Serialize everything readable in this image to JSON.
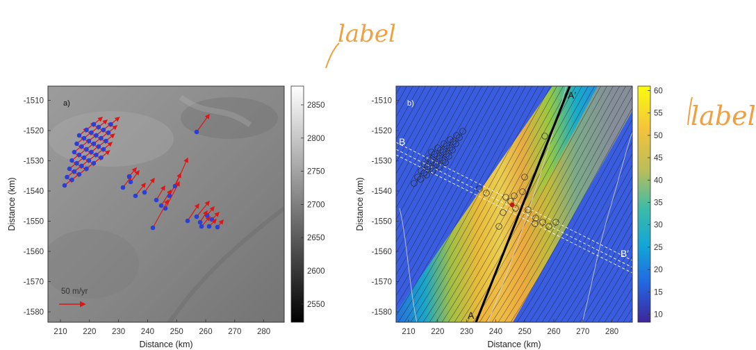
{
  "annotations": {
    "handwritten_top": "label",
    "handwritten_right": "label",
    "ink_color": "#f0a040"
  },
  "panel_a": {
    "tag": "a)",
    "xlabel": "Distance (km)",
    "ylabel": "Distance (km)",
    "x_ticks": [
      "210",
      "220",
      "230",
      "240",
      "250",
      "260",
      "270",
      "280"
    ],
    "y_ticks": [
      "-1510",
      "-1520",
      "-1530",
      "-1540",
      "-1550",
      "-1560",
      "-1570",
      "-1580"
    ],
    "colorbar_ticks": [
      "2850",
      "2800",
      "2750",
      "2700",
      "2650",
      "2600",
      "2550"
    ],
    "scale_label": "50 m/yr",
    "vector_color": "#e01515",
    "station_color": "#2a3fd6"
  },
  "panel_b": {
    "tag": "b)",
    "xlabel": "Distance (km)",
    "ylabel": "Distance (km)",
    "x_ticks": [
      "210",
      "220",
      "230",
      "240",
      "250",
      "260",
      "270",
      "280"
    ],
    "y_ticks": [
      "-1510",
      "-1520",
      "-1530",
      "-1540",
      "-1550",
      "-1560",
      "-1570",
      "-1580"
    ],
    "colorbar_ticks": [
      "60",
      "55",
      "50",
      "45",
      "40",
      "35",
      "30",
      "25",
      "20",
      "15",
      "10"
    ],
    "profile_labels": {
      "A": "A",
      "A_prime": "A′",
      "B": "B",
      "B_prime": "B′"
    }
  }
}
